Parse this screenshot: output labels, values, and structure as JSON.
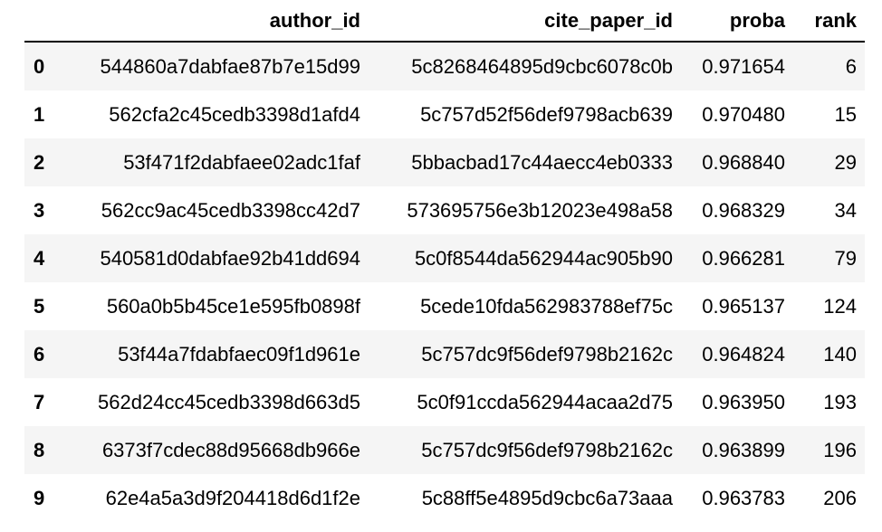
{
  "table": {
    "columns": [
      "",
      "author_id",
      "cite_paper_id",
      "proba",
      "rank"
    ],
    "rows": [
      {
        "index": "0",
        "author_id": "544860a7dabfae87b7e15d99",
        "cite_paper_id": "5c8268464895d9cbc6078c0b",
        "proba": "0.971654",
        "rank": "6"
      },
      {
        "index": "1",
        "author_id": "562cfa2c45cedb3398d1afd4",
        "cite_paper_id": "5c757d52f56def9798acb639",
        "proba": "0.970480",
        "rank": "15"
      },
      {
        "index": "2",
        "author_id": "53f471f2dabfaee02adc1faf",
        "cite_paper_id": "5bbacbad17c44aecc4eb0333",
        "proba": "0.968840",
        "rank": "29"
      },
      {
        "index": "3",
        "author_id": "562cc9ac45cedb3398cc42d7",
        "cite_paper_id": "573695756e3b12023e498a58",
        "proba": "0.968329",
        "rank": "34"
      },
      {
        "index": "4",
        "author_id": "540581d0dabfae92b41dd694",
        "cite_paper_id": "5c0f8544da562944ac905b90",
        "proba": "0.966281",
        "rank": "79"
      },
      {
        "index": "5",
        "author_id": "560a0b5b45ce1e595fb0898f",
        "cite_paper_id": "5cede10fda562983788ef75c",
        "proba": "0.965137",
        "rank": "124"
      },
      {
        "index": "6",
        "author_id": "53f44a7fdabfaec09f1d961e",
        "cite_paper_id": "5c757dc9f56def9798b2162c",
        "proba": "0.964824",
        "rank": "140"
      },
      {
        "index": "7",
        "author_id": "562d24cc45cedb3398d663d5",
        "cite_paper_id": "5c0f91ccda562944acaa2d75",
        "proba": "0.963950",
        "rank": "193"
      },
      {
        "index": "8",
        "author_id": "6373f7cdec88d95668db966e",
        "cite_paper_id": "5c757dc9f56def9798b2162c",
        "proba": "0.963899",
        "rank": "196"
      },
      {
        "index": "9",
        "author_id": "62e4a5a3d9f204418d6d1f2e",
        "cite_paper_id": "5c88ff5e4895d9cbc6a73aaa",
        "proba": "0.963783",
        "rank": "206"
      }
    ]
  }
}
